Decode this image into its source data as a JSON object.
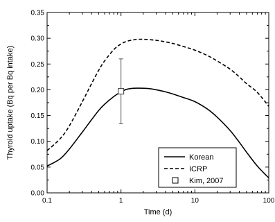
{
  "chart_data": {
    "type": "line",
    "xlabel": "Time (d)",
    "ylabel": "Thyroid uptake (Bq per Bq intake)",
    "xscale": "log",
    "xlim": [
      0.1,
      100
    ],
    "ylim": [
      0,
      0.35
    ],
    "x_ticks": [
      0.1,
      1,
      10,
      100
    ],
    "x_tick_labels": [
      "0.1",
      "1",
      "10",
      "100"
    ],
    "y_ticks": [
      0,
      0.05,
      0.1,
      0.15,
      0.2,
      0.25,
      0.3,
      0.35
    ],
    "y_tick_labels": [
      "0.00",
      "0.05",
      "0.10",
      "0.15",
      "0.20",
      "0.25",
      "0.30",
      "0.35"
    ],
    "grid": false,
    "legend_position": "bottom-right",
    "series": [
      {
        "name": "Korean",
        "style": "solid",
        "color": "#000000",
        "x": [
          0.1,
          0.15,
          0.2,
          0.3,
          0.4,
          0.5,
          0.6,
          0.8,
          1,
          1.2,
          1.5,
          2,
          2.5,
          3,
          4,
          5,
          7,
          10,
          15,
          20,
          30,
          40,
          50,
          70,
          100
        ],
        "y": [
          0.052,
          0.066,
          0.085,
          0.118,
          0.142,
          0.16,
          0.172,
          0.187,
          0.196,
          0.201,
          0.203,
          0.203,
          0.202,
          0.2,
          0.196,
          0.192,
          0.185,
          0.177,
          0.162,
          0.147,
          0.121,
          0.098,
          0.079,
          0.052,
          0.029
        ]
      },
      {
        "name": "ICRP",
        "style": "dashed",
        "color": "#000000",
        "x": [
          0.1,
          0.15,
          0.2,
          0.3,
          0.4,
          0.5,
          0.6,
          0.8,
          1,
          1.2,
          1.5,
          2,
          3,
          4,
          5,
          7,
          10,
          15,
          20,
          30,
          40,
          50,
          70,
          100
        ],
        "y": [
          0.082,
          0.105,
          0.13,
          0.177,
          0.212,
          0.238,
          0.256,
          0.278,
          0.289,
          0.294,
          0.297,
          0.298,
          0.296,
          0.293,
          0.29,
          0.284,
          0.277,
          0.266,
          0.256,
          0.24,
          0.225,
          0.212,
          0.195,
          0.168
        ]
      },
      {
        "name": "Kim, 2007",
        "style": "marker",
        "marker": "open-square",
        "color": "#000000",
        "x": [
          1
        ],
        "y": [
          0.197
        ],
        "y_err_low": [
          0.134
        ],
        "y_err_high": [
          0.26
        ]
      }
    ]
  }
}
